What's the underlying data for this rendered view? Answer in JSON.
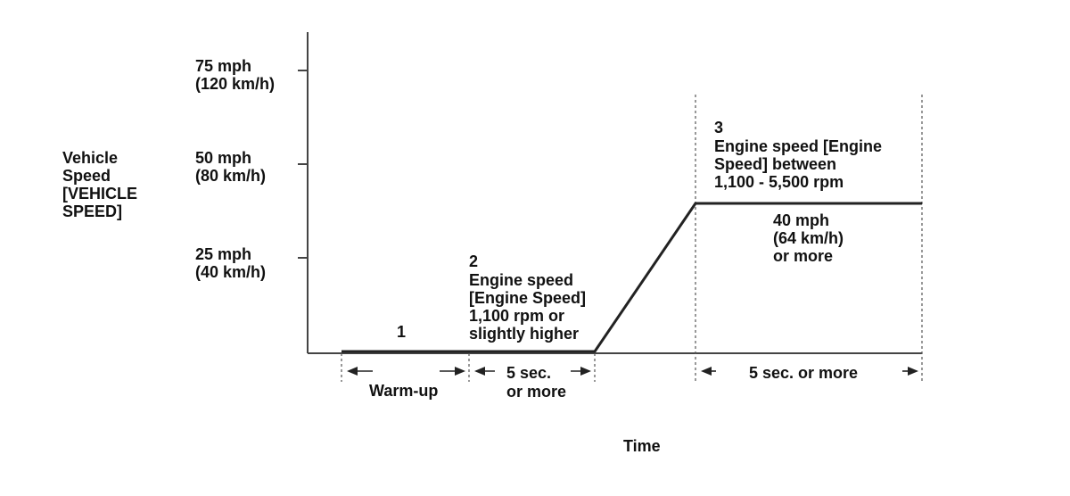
{
  "y_axis": {
    "title": [
      "Vehicle",
      "Speed",
      "[VEHICLE",
      "SPEED]"
    ],
    "ticks": [
      {
        "value_mph": 75,
        "lines": [
          "75 mph",
          "(120 km/h)"
        ]
      },
      {
        "value_mph": 50,
        "lines": [
          "50 mph",
          "(80 km/h)"
        ]
      },
      {
        "value_mph": 25,
        "lines": [
          "25 mph",
          "(40 km/h)"
        ]
      }
    ]
  },
  "x_axis": {
    "title": "Time"
  },
  "phases": {
    "phase1": {
      "number": "1"
    },
    "phase2": {
      "lines": [
        "2",
        "Engine speed",
        "[Engine Speed]",
        "1,100 rpm or",
        "slightly higher"
      ]
    },
    "phase3": {
      "lines": [
        "3",
        "Engine speed [Engine",
        "Speed] between",
        "1,100 - 5,500 rpm"
      ]
    },
    "speed_target": {
      "lines": [
        "40 mph",
        "(64 km/h)",
        "or more"
      ]
    }
  },
  "durations": {
    "warmup": {
      "lines": [
        "Warm-up"
      ]
    },
    "hold1": {
      "lines": [
        "5 sec.",
        "or more"
      ]
    },
    "hold2": {
      "lines": [
        "5 sec. or more"
      ]
    }
  }
}
